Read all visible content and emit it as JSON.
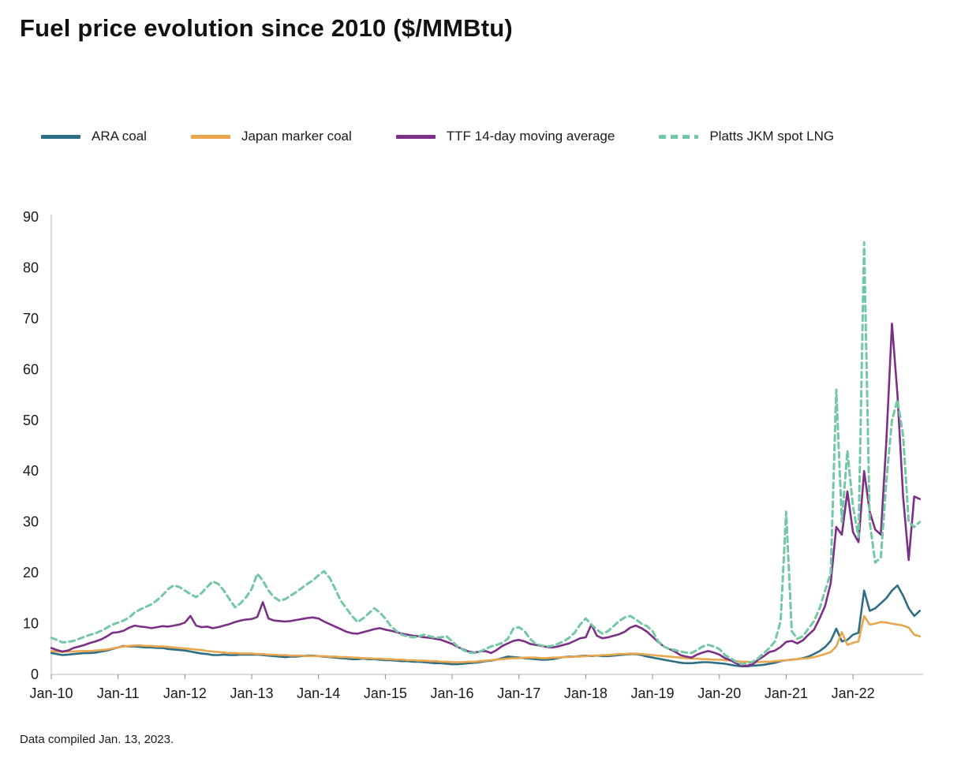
{
  "title": "Fuel price evolution since 2010 ($/MMBtu)",
  "footnote": "Data compiled Jan. 13, 2023.",
  "colors": {
    "axis_line": "#b5b5b5",
    "tick_mark": "#8c8c8c",
    "label_text": "#1a1a1a",
    "background": "#ffffff"
  },
  "chart_data": {
    "type": "line",
    "title": "Fuel price evolution since 2010 ($/MMBtu)",
    "xlabel": "",
    "ylabel": "",
    "ylim": [
      0,
      90
    ],
    "y_ticks": [
      0,
      10,
      20,
      30,
      40,
      50,
      60,
      70,
      80,
      90
    ],
    "x_tick_labels": [
      "Jan-10",
      "Jan-11",
      "Jan-12",
      "Jan-13",
      "Jan-14",
      "Jan-15",
      "Jan-16",
      "Jan-17",
      "Jan-18",
      "Jan-19",
      "Jan-20",
      "Jan-21",
      "Jan-22"
    ],
    "x_start_year": 2010,
    "x_step_months": 1,
    "x_domain_years": [
      2010,
      2023.05
    ],
    "grid": false,
    "legend_position": "top",
    "series": [
      {
        "name": "ARA coal",
        "color": "#2e6e85",
        "dash": "solid",
        "values": [
          4.2,
          4.0,
          3.8,
          3.9,
          4.0,
          4.1,
          4.2,
          4.2,
          4.3,
          4.5,
          4.7,
          5.0,
          5.3,
          5.6,
          5.5,
          5.5,
          5.4,
          5.3,
          5.3,
          5.2,
          5.2,
          5.0,
          4.9,
          4.8,
          4.7,
          4.5,
          4.3,
          4.1,
          4.0,
          3.8,
          3.8,
          3.9,
          3.8,
          3.8,
          3.9,
          3.9,
          3.9,
          3.9,
          3.8,
          3.7,
          3.6,
          3.5,
          3.4,
          3.5,
          3.5,
          3.6,
          3.7,
          3.7,
          3.6,
          3.5,
          3.4,
          3.3,
          3.2,
          3.1,
          3.0,
          3.0,
          3.1,
          3.0,
          3.0,
          2.9,
          2.8,
          2.8,
          2.7,
          2.6,
          2.6,
          2.5,
          2.5,
          2.4,
          2.3,
          2.2,
          2.2,
          2.1,
          2.0,
          2.0,
          2.1,
          2.2,
          2.3,
          2.4,
          2.6,
          2.7,
          2.9,
          3.2,
          3.5,
          3.4,
          3.3,
          3.2,
          3.1,
          3.0,
          2.9,
          2.9,
          3.0,
          3.2,
          3.4,
          3.5,
          3.5,
          3.6,
          3.7,
          3.6,
          3.7,
          3.6,
          3.6,
          3.7,
          3.8,
          3.9,
          4.0,
          4.0,
          3.8,
          3.5,
          3.3,
          3.1,
          2.9,
          2.7,
          2.5,
          2.3,
          2.2,
          2.2,
          2.3,
          2.4,
          2.4,
          2.3,
          2.2,
          2.1,
          1.9,
          1.7,
          1.6,
          1.6,
          1.7,
          1.8,
          1.9,
          2.1,
          2.3,
          2.6,
          2.8,
          2.9,
          3.0,
          3.2,
          3.5,
          4.0,
          4.6,
          5.4,
          6.6,
          9.0,
          6.5,
          6.8,
          7.8,
          8.2,
          16.5,
          12.5,
          13.0,
          14.0,
          15.0,
          16.5,
          17.5,
          15.5,
          13.0,
          11.5,
          12.5
        ]
      },
      {
        "name": "Japan marker coal",
        "color": "#e8a64e",
        "dash": "solid",
        "values": [
          4.6,
          4.5,
          4.4,
          4.5,
          4.5,
          4.6,
          4.6,
          4.6,
          4.7,
          4.8,
          4.9,
          5.1,
          5.3,
          5.5,
          5.6,
          5.7,
          5.7,
          5.6,
          5.6,
          5.5,
          5.5,
          5.4,
          5.3,
          5.2,
          5.1,
          5.0,
          4.9,
          4.8,
          4.6,
          4.5,
          4.4,
          4.3,
          4.2,
          4.2,
          4.1,
          4.1,
          4.1,
          4.0,
          4.0,
          3.9,
          3.9,
          3.8,
          3.8,
          3.7,
          3.7,
          3.7,
          3.6,
          3.6,
          3.6,
          3.6,
          3.5,
          3.5,
          3.4,
          3.4,
          3.3,
          3.3,
          3.2,
          3.2,
          3.1,
          3.1,
          3.0,
          3.0,
          2.9,
          2.9,
          2.8,
          2.8,
          2.7,
          2.7,
          2.6,
          2.6,
          2.5,
          2.5,
          2.4,
          2.4,
          2.4,
          2.5,
          2.5,
          2.6,
          2.7,
          2.8,
          2.9,
          3.0,
          3.1,
          3.2,
          3.2,
          3.3,
          3.3,
          3.3,
          3.2,
          3.2,
          3.3,
          3.3,
          3.4,
          3.4,
          3.5,
          3.5,
          3.6,
          3.7,
          3.7,
          3.8,
          3.8,
          3.9,
          4.0,
          4.0,
          4.1,
          4.1,
          4.0,
          3.9,
          3.8,
          3.7,
          3.6,
          3.5,
          3.4,
          3.3,
          3.2,
          3.1,
          3.1,
          3.0,
          3.0,
          2.9,
          2.9,
          2.8,
          2.7,
          2.6,
          2.5,
          2.5,
          2.4,
          2.4,
          2.5,
          2.5,
          2.6,
          2.7,
          2.8,
          2.9,
          3.0,
          3.1,
          3.2,
          3.4,
          3.7,
          4.0,
          4.4,
          5.5,
          8.3,
          5.8,
          6.2,
          6.5,
          11.5,
          9.8,
          10.0,
          10.3,
          10.2,
          10.0,
          9.8,
          9.6,
          9.2,
          7.8,
          7.5
        ]
      },
      {
        "name": "TTF 14-day moving average",
        "color": "#7c2f87",
        "dash": "solid",
        "values": [
          5.2,
          4.8,
          4.5,
          4.7,
          5.2,
          5.5,
          5.8,
          6.2,
          6.5,
          6.9,
          7.5,
          8.2,
          8.3,
          8.6,
          9.2,
          9.6,
          9.4,
          9.3,
          9.1,
          9.3,
          9.5,
          9.4,
          9.6,
          9.8,
          10.2,
          11.5,
          9.6,
          9.3,
          9.4,
          9.1,
          9.3,
          9.6,
          9.9,
          10.3,
          10.6,
          10.8,
          10.9,
          11.3,
          14.2,
          11.0,
          10.6,
          10.5,
          10.4,
          10.5,
          10.7,
          10.9,
          11.1,
          11.2,
          11.0,
          10.4,
          9.9,
          9.4,
          8.9,
          8.4,
          8.1,
          8.0,
          8.3,
          8.6,
          8.9,
          9.1,
          8.8,
          8.6,
          8.3,
          8.0,
          7.8,
          7.6,
          7.5,
          7.3,
          7.2,
          7.0,
          6.8,
          6.4,
          6.0,
          5.4,
          4.9,
          4.5,
          4.3,
          4.5,
          4.6,
          4.2,
          4.8,
          5.6,
          6.1,
          6.6,
          6.8,
          6.5,
          6.0,
          5.8,
          5.6,
          5.4,
          5.3,
          5.5,
          5.8,
          6.1,
          6.6,
          7.1,
          7.3,
          9.8,
          7.6,
          7.1,
          7.3,
          7.6,
          7.9,
          8.4,
          9.2,
          9.6,
          9.1,
          8.4,
          7.4,
          6.4,
          5.5,
          5.0,
          4.5,
          3.8,
          3.5,
          3.3,
          3.9,
          4.3,
          4.6,
          4.3,
          3.9,
          3.2,
          2.8,
          2.2,
          1.7,
          1.7,
          2.0,
          2.9,
          3.6,
          4.4,
          4.7,
          5.4,
          6.4,
          6.6,
          6.1,
          6.7,
          7.8,
          8.8,
          11.0,
          13.5,
          18.0,
          29.0,
          27.5,
          36.0,
          28.0,
          26.0,
          40.0,
          32.0,
          28.5,
          27.5,
          46.0,
          69.0,
          55.0,
          35.0,
          22.5,
          35.0,
          34.5
        ]
      },
      {
        "name": "Platts JKM spot LNG",
        "color": "#74c7a5",
        "dash": "dashed",
        "values": [
          7.2,
          6.8,
          6.3,
          6.4,
          6.6,
          7.0,
          7.4,
          7.8,
          8.1,
          8.6,
          9.2,
          9.8,
          10.2,
          10.6,
          11.2,
          12.2,
          12.8,
          13.3,
          13.8,
          14.6,
          15.6,
          16.8,
          17.5,
          17.2,
          16.5,
          15.8,
          15.2,
          16.0,
          17.2,
          18.3,
          17.8,
          16.5,
          14.8,
          13.2,
          14.0,
          15.2,
          16.8,
          19.8,
          18.5,
          16.5,
          15.2,
          14.5,
          14.8,
          15.5,
          16.2,
          17.0,
          17.8,
          18.5,
          19.5,
          20.3,
          19.0,
          16.8,
          14.5,
          13.0,
          11.5,
          10.3,
          11.0,
          12.0,
          13.0,
          12.2,
          11.0,
          9.5,
          8.5,
          7.8,
          7.5,
          7.3,
          7.5,
          7.8,
          7.5,
          7.2,
          7.3,
          7.5,
          6.5,
          5.5,
          4.8,
          4.3,
          4.2,
          4.5,
          5.0,
          5.5,
          5.8,
          6.2,
          7.0,
          9.0,
          9.3,
          8.5,
          7.0,
          6.0,
          5.7,
          5.5,
          5.6,
          6.0,
          6.5,
          7.2,
          8.2,
          9.8,
          11.0,
          9.8,
          8.8,
          8.0,
          8.5,
          9.5,
          10.5,
          11.2,
          11.5,
          10.8,
          10.0,
          9.5,
          8.5,
          6.5,
          5.5,
          5.0,
          4.8,
          4.5,
          4.3,
          4.2,
          4.8,
          5.5,
          5.8,
          5.5,
          5.0,
          3.8,
          3.2,
          2.5,
          2.0,
          2.2,
          2.5,
          3.2,
          4.2,
          5.2,
          6.5,
          10.5,
          32.0,
          8.5,
          7.0,
          7.5,
          9.0,
          10.5,
          13.0,
          16.5,
          20.0,
          56.0,
          30.0,
          44.0,
          33.0,
          27.0,
          85.0,
          30.0,
          22.0,
          23.0,
          38.0,
          50.0,
          54.0,
          47.0,
          30.0,
          29.0,
          30.0
        ]
      }
    ]
  }
}
